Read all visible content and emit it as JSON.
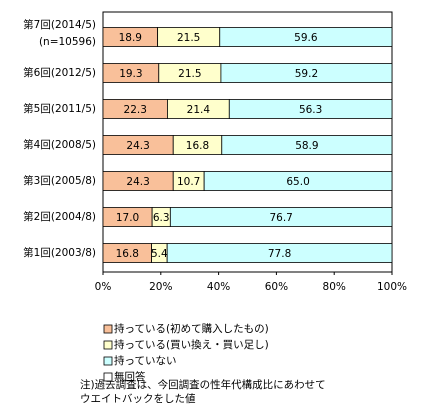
{
  "chart_data": {
    "type": "stacked-barh",
    "categories": [
      "第7回(2014/5)",
      "第6回(2012/5)",
      "第5回(2011/5)",
      "第4回(2008/5)",
      "第3回(2005/8)",
      "第2回(2004/8)",
      "第1回(2003/8)"
    ],
    "category_note": "(n=10596)",
    "series": [
      {
        "name": "持っている(初めて購入したもの)",
        "color": "#f9c09a",
        "values": [
          18.9,
          19.3,
          22.3,
          24.3,
          24.3,
          17.0,
          16.8
        ],
        "value_labels": [
          "18.9",
          "19.3",
          "22.3",
          "24.3",
          "24.3",
          "17.0",
          "16.8"
        ]
      },
      {
        "name": "持っている(買い換え・買い足し)",
        "color": "#ffffcc",
        "values": [
          21.5,
          21.5,
          21.4,
          16.8,
          10.7,
          6.3,
          5.4
        ],
        "value_labels": [
          "21.5",
          "21.5",
          "21.4",
          "16.8",
          "10.7",
          "6.3",
          "5.4"
        ]
      },
      {
        "name": "持っていない",
        "color": "#ccffff",
        "values": [
          59.6,
          59.2,
          56.3,
          58.9,
          65.0,
          76.7,
          77.8
        ],
        "value_labels": [
          "59.6",
          "59.2",
          "56.3",
          "58.9",
          "65.0",
          "76.7",
          "77.8"
        ]
      },
      {
        "name": "無回答",
        "color": "#ffffff",
        "values": [
          0,
          0,
          0,
          0,
          0,
          0,
          0
        ]
      }
    ],
    "xlim": [
      0,
      100
    ],
    "xticks": [
      {
        "value": 0,
        "label": "0%"
      },
      {
        "value": 20,
        "label": "20%"
      },
      {
        "value": 40,
        "label": "40%"
      },
      {
        "value": 60,
        "label": "60%"
      },
      {
        "value": 80,
        "label": "80%"
      },
      {
        "value": 100,
        "label": "100%"
      }
    ],
    "grid": false,
    "note": [
      "注)過去調査は、今回調査の性年代構成比にあわせて",
      "ウエイトバックをした値"
    ]
  }
}
